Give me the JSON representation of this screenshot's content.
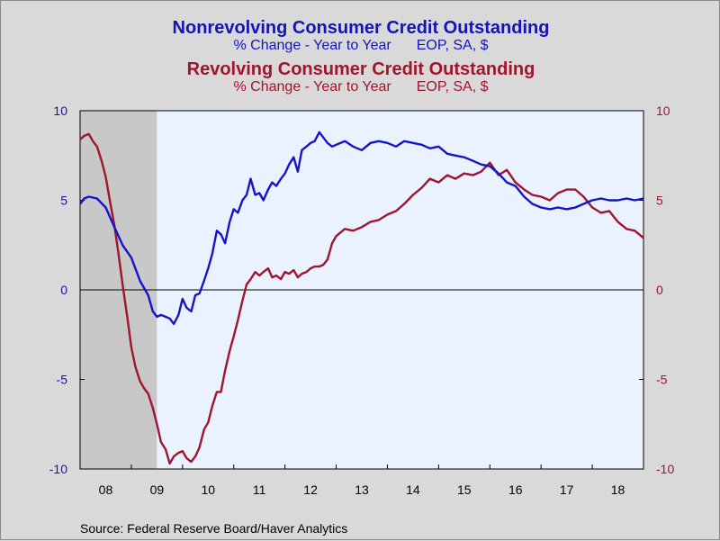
{
  "titles": {
    "title1": "Nonrevolving Consumer Credit Outstanding",
    "subtitle1_left": "% Change - Year to Year",
    "subtitle1_right": "EOP, SA, $",
    "title2": "Revolving Consumer Credit Outstanding",
    "subtitle2_left": "% Change - Year to Year",
    "subtitle2_right": "EOP, SA, $"
  },
  "source": "Source:  Federal Reserve Board/Haver Analytics",
  "colors": {
    "nonrevolving": "#1414c8",
    "revolving": "#a0142d",
    "plot_bg": "#eaf2ff",
    "recession": "#c8c8c8",
    "left_axis_text": "#1414b4",
    "right_axis_text": "#a0142d"
  },
  "chart_data": {
    "type": "line",
    "xlim": [
      2008.0,
      2019.0
    ],
    "ylim": [
      -10,
      10
    ],
    "yticks": [
      -10,
      -5,
      0,
      5,
      10
    ],
    "ytick_labels": [
      "-10",
      "-5",
      "0",
      "5",
      "10"
    ],
    "xtick_labels": [
      "08",
      "09",
      "10",
      "11",
      "12",
      "13",
      "14",
      "15",
      "16",
      "17",
      "18"
    ],
    "recession_band": [
      2008.0,
      2009.5
    ],
    "series": [
      {
        "name": "Nonrevolving Consumer Credit Outstanding",
        "axis": "left",
        "x": [
          2008.0,
          2008.08,
          2008.17,
          2008.33,
          2008.5,
          2008.67,
          2008.83,
          2009.0,
          2009.17,
          2009.33,
          2009.42,
          2009.5,
          2009.58,
          2009.67,
          2009.75,
          2009.83,
          2009.92,
          2010.0,
          2010.08,
          2010.17,
          2010.25,
          2010.33,
          2010.42,
          2010.5,
          2010.58,
          2010.67,
          2010.75,
          2010.83,
          2010.92,
          2011.0,
          2011.08,
          2011.17,
          2011.25,
          2011.33,
          2011.42,
          2011.5,
          2011.58,
          2011.67,
          2011.75,
          2011.83,
          2011.92,
          2012.0,
          2012.08,
          2012.17,
          2012.25,
          2012.33,
          2012.42,
          2012.5,
          2012.58,
          2012.67,
          2012.75,
          2012.83,
          2012.92,
          2013.0,
          2013.17,
          2013.33,
          2013.5,
          2013.67,
          2013.83,
          2014.0,
          2014.17,
          2014.33,
          2014.5,
          2014.67,
          2014.83,
          2015.0,
          2015.17,
          2015.33,
          2015.5,
          2015.67,
          2015.83,
          2016.0,
          2016.17,
          2016.33,
          2016.5,
          2016.67,
          2016.83,
          2017.0,
          2017.17,
          2017.33,
          2017.5,
          2017.67,
          2017.83,
          2018.0,
          2018.17,
          2018.33,
          2018.5,
          2018.67,
          2018.83,
          2019.0
        ],
        "y": [
          4.8,
          5.1,
          5.2,
          5.1,
          4.6,
          3.5,
          2.5,
          1.8,
          0.5,
          -0.3,
          -1.2,
          -1.5,
          -1.4,
          -1.5,
          -1.6,
          -1.9,
          -1.4,
          -0.5,
          -1.0,
          -1.2,
          -0.3,
          -0.2,
          0.5,
          1.2,
          2.0,
          3.3,
          3.1,
          2.6,
          3.8,
          4.5,
          4.3,
          5.0,
          5.3,
          6.2,
          5.3,
          5.4,
          5.0,
          5.6,
          6.0,
          5.8,
          6.2,
          6.5,
          7.0,
          7.4,
          6.6,
          7.8,
          8.0,
          8.2,
          8.3,
          8.8,
          8.5,
          8.2,
          8.0,
          8.1,
          8.3,
          8.0,
          7.8,
          8.2,
          8.3,
          8.2,
          8.0,
          8.3,
          8.2,
          8.1,
          7.9,
          8.0,
          7.6,
          7.5,
          7.4,
          7.2,
          7.0,
          6.9,
          6.5,
          6.0,
          5.8,
          5.2,
          4.8,
          4.6,
          4.5,
          4.6,
          4.5,
          4.6,
          4.8,
          5.0,
          5.1,
          5.0,
          5.0,
          5.1,
          5.0,
          5.1
        ]
      },
      {
        "name": "Revolving Consumer Credit Outstanding",
        "axis": "right",
        "x": [
          2008.0,
          2008.08,
          2008.17,
          2008.25,
          2008.33,
          2008.42,
          2008.5,
          2008.58,
          2008.67,
          2008.75,
          2008.83,
          2008.92,
          2009.0,
          2009.08,
          2009.17,
          2009.25,
          2009.33,
          2009.42,
          2009.5,
          2009.58,
          2009.67,
          2009.75,
          2009.83,
          2009.92,
          2010.0,
          2010.08,
          2010.17,
          2010.25,
          2010.33,
          2010.42,
          2010.5,
          2010.58,
          2010.67,
          2010.75,
          2010.83,
          2010.92,
          2011.0,
          2011.08,
          2011.17,
          2011.25,
          2011.33,
          2011.42,
          2011.5,
          2011.58,
          2011.67,
          2011.75,
          2011.83,
          2011.92,
          2012.0,
          2012.08,
          2012.17,
          2012.25,
          2012.33,
          2012.42,
          2012.5,
          2012.58,
          2012.67,
          2012.75,
          2012.83,
          2012.92,
          2013.0,
          2013.17,
          2013.33,
          2013.5,
          2013.67,
          2013.83,
          2014.0,
          2014.17,
          2014.33,
          2014.5,
          2014.67,
          2014.83,
          2015.0,
          2015.17,
          2015.33,
          2015.5,
          2015.67,
          2015.83,
          2016.0,
          2016.17,
          2016.33,
          2016.5,
          2016.67,
          2016.83,
          2017.0,
          2017.17,
          2017.33,
          2017.5,
          2017.67,
          2017.83,
          2018.0,
          2018.17,
          2018.33,
          2018.5,
          2018.67,
          2018.83,
          2019.0
        ],
        "y": [
          8.4,
          8.6,
          8.7,
          8.3,
          8.0,
          7.2,
          6.3,
          5.0,
          3.6,
          2.0,
          0.3,
          -1.5,
          -3.2,
          -4.3,
          -5.1,
          -5.5,
          -5.8,
          -6.6,
          -7.5,
          -8.5,
          -8.9,
          -9.7,
          -9.3,
          -9.1,
          -9.0,
          -9.4,
          -9.6,
          -9.3,
          -8.8,
          -7.8,
          -7.4,
          -6.5,
          -5.7,
          -5.7,
          -4.5,
          -3.4,
          -2.6,
          -1.7,
          -0.6,
          0.3,
          0.6,
          1.0,
          0.8,
          1.0,
          1.2,
          0.7,
          0.8,
          0.6,
          1.0,
          0.9,
          1.1,
          0.7,
          0.9,
          1.0,
          1.2,
          1.3,
          1.3,
          1.4,
          1.7,
          2.6,
          3.0,
          3.4,
          3.3,
          3.5,
          3.8,
          3.9,
          4.2,
          4.4,
          4.8,
          5.3,
          5.7,
          6.2,
          6.0,
          6.4,
          6.2,
          6.5,
          6.4,
          6.6,
          7.1,
          6.4,
          6.7,
          6.0,
          5.6,
          5.3,
          5.2,
          5.0,
          5.4,
          5.6,
          5.6,
          5.2,
          4.6,
          4.3,
          4.4,
          3.8,
          3.4,
          3.3,
          2.9
        ]
      }
    ]
  }
}
